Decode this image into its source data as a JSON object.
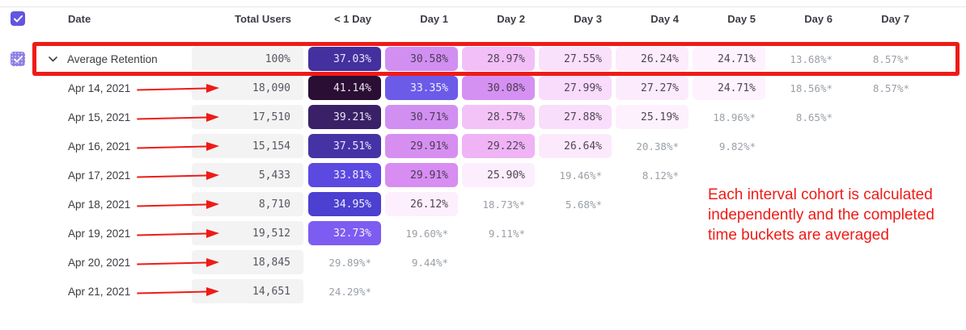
{
  "colors": {
    "annotation_red": "#ee1b17",
    "checkbox_purple": "#6355e0",
    "checkbox_purple_dotted": "#8b7ee6",
    "muted_value_gray": "#9aa0a7",
    "cell_gray_bg": "#f3f3f4"
  },
  "annotations": {
    "note": "Each interval cohort is calculated independently and the completed time buckets are averaged"
  },
  "header": {
    "select_all_checked": true,
    "columns": [
      "Date",
      "Total Users",
      "< 1 Day",
      "Day 1",
      "Day 2",
      "Day 3",
      "Day 4",
      "Day 5",
      "Day 6",
      "Day 7"
    ]
  },
  "table": {
    "rows": [
      {
        "label": "Average Retention",
        "is_average": true,
        "checked": true,
        "expanded": true,
        "total": "100%",
        "cells": [
          {
            "text": "37.03%",
            "bg": "#44309e",
            "fg": "#e9e6f8"
          },
          {
            "text": "30.58%",
            "bg": "#d18ff2",
            "fg": "#4b3a54"
          },
          {
            "text": "28.97%",
            "bg": "#f2bff8",
            "fg": "#514556"
          },
          {
            "text": "27.55%",
            "bg": "#fae1fb",
            "fg": "#514556"
          },
          {
            "text": "26.24%",
            "bg": "#fcecfc",
            "fg": "#514556"
          },
          {
            "text": "24.71%",
            "bg": "#fdf2fd",
            "fg": "#514556"
          },
          {
            "text": "13.68%*",
            "bg": null,
            "fg": "#9aa0a7"
          },
          {
            "text": "8.57%*",
            "bg": null,
            "fg": "#9aa0a7"
          }
        ]
      },
      {
        "label": "Apr 14, 2021",
        "total": "18,090",
        "cells": [
          {
            "text": "41.14%",
            "bg": "#2b0e33",
            "fg": "#ece4ee"
          },
          {
            "text": "33.35%",
            "bg": "#6c5ae9",
            "fg": "#f0eefd"
          },
          {
            "text": "30.08%",
            "bg": "#d591f1",
            "fg": "#4b3a54"
          },
          {
            "text": "27.99%",
            "bg": "#f9dcfb",
            "fg": "#514556"
          },
          {
            "text": "27.27%",
            "bg": "#fcebfc",
            "fg": "#514556"
          },
          {
            "text": "24.71%",
            "bg": "#fdf2fd",
            "fg": "#514556"
          },
          {
            "text": "18.56%*",
            "bg": null,
            "fg": "#9aa0a7"
          },
          {
            "text": "8.57%*",
            "bg": null,
            "fg": "#9aa0a7"
          }
        ]
      },
      {
        "label": "Apr 15, 2021",
        "total": "17,510",
        "cells": [
          {
            "text": "39.21%",
            "bg": "#3a2066",
            "fg": "#e9e3f3"
          },
          {
            "text": "30.71%",
            "bg": "#d18ff2",
            "fg": "#4b3a54"
          },
          {
            "text": "28.57%",
            "bg": "#f3c3f8",
            "fg": "#514556"
          },
          {
            "text": "27.88%",
            "bg": "#f9defb",
            "fg": "#514556"
          },
          {
            "text": "25.19%",
            "bg": "#fdf1fd",
            "fg": "#514556"
          },
          {
            "text": "18.96%*",
            "bg": null,
            "fg": "#9aa0a7"
          },
          {
            "text": "8.65%*",
            "bg": null,
            "fg": "#9aa0a7"
          },
          null
        ]
      },
      {
        "label": "Apr 16, 2021",
        "total": "15,154",
        "cells": [
          {
            "text": "37.51%",
            "bg": "#4533a6",
            "fg": "#e9e6f8"
          },
          {
            "text": "29.91%",
            "bg": "#d68ff1",
            "fg": "#4b3a54"
          },
          {
            "text": "29.22%",
            "bg": "#efb3f6",
            "fg": "#514556"
          },
          {
            "text": "26.64%",
            "bg": "#fceafc",
            "fg": "#514556"
          },
          {
            "text": "20.38%*",
            "bg": null,
            "fg": "#9aa0a7"
          },
          {
            "text": "9.82%*",
            "bg": null,
            "fg": "#9aa0a7"
          },
          null,
          null
        ]
      },
      {
        "label": "Apr 17, 2021",
        "total": "5,433",
        "cells": [
          {
            "text": "33.81%",
            "bg": "#5c49e0",
            "fg": "#efeefd"
          },
          {
            "text": "29.91%",
            "bg": "#d78df1",
            "fg": "#4b3a54"
          },
          {
            "text": "25.90%",
            "bg": "#fdeefd",
            "fg": "#514556"
          },
          {
            "text": "19.46%*",
            "bg": null,
            "fg": "#9aa0a7"
          },
          {
            "text": "8.12%*",
            "bg": null,
            "fg": "#9aa0a7"
          },
          null,
          null,
          null
        ]
      },
      {
        "label": "Apr 18, 2021",
        "total": "8,710",
        "cells": [
          {
            "text": "34.95%",
            "bg": "#4b40d0",
            "fg": "#eef0fd"
          },
          {
            "text": "26.12%",
            "bg": "#fdeffd",
            "fg": "#514556"
          },
          {
            "text": "18.73%*",
            "bg": null,
            "fg": "#9aa0a7"
          },
          {
            "text": "5.68%*",
            "bg": null,
            "fg": "#9aa0a7"
          },
          null,
          null,
          null,
          null
        ]
      },
      {
        "label": "Apr 19, 2021",
        "total": "19,512",
        "cells": [
          {
            "text": "32.73%",
            "bg": "#7d5cf2",
            "fg": "#f3f1fe"
          },
          {
            "text": "19.60%*",
            "bg": null,
            "fg": "#9aa0a7"
          },
          {
            "text": "9.11%*",
            "bg": null,
            "fg": "#9aa0a7"
          },
          null,
          null,
          null,
          null,
          null
        ]
      },
      {
        "label": "Apr 20, 2021",
        "total": "18,845",
        "cells": [
          {
            "text": "29.89%*",
            "bg": null,
            "fg": "#9aa0a7"
          },
          {
            "text": "9.44%*",
            "bg": null,
            "fg": "#9aa0a7"
          },
          null,
          null,
          null,
          null,
          null,
          null
        ]
      },
      {
        "label": "Apr 21, 2021",
        "total": "14,651",
        "cells": [
          {
            "text": "24.29%*",
            "bg": null,
            "fg": "#9aa0a7"
          },
          null,
          null,
          null,
          null,
          null,
          null,
          null
        ]
      }
    ]
  }
}
